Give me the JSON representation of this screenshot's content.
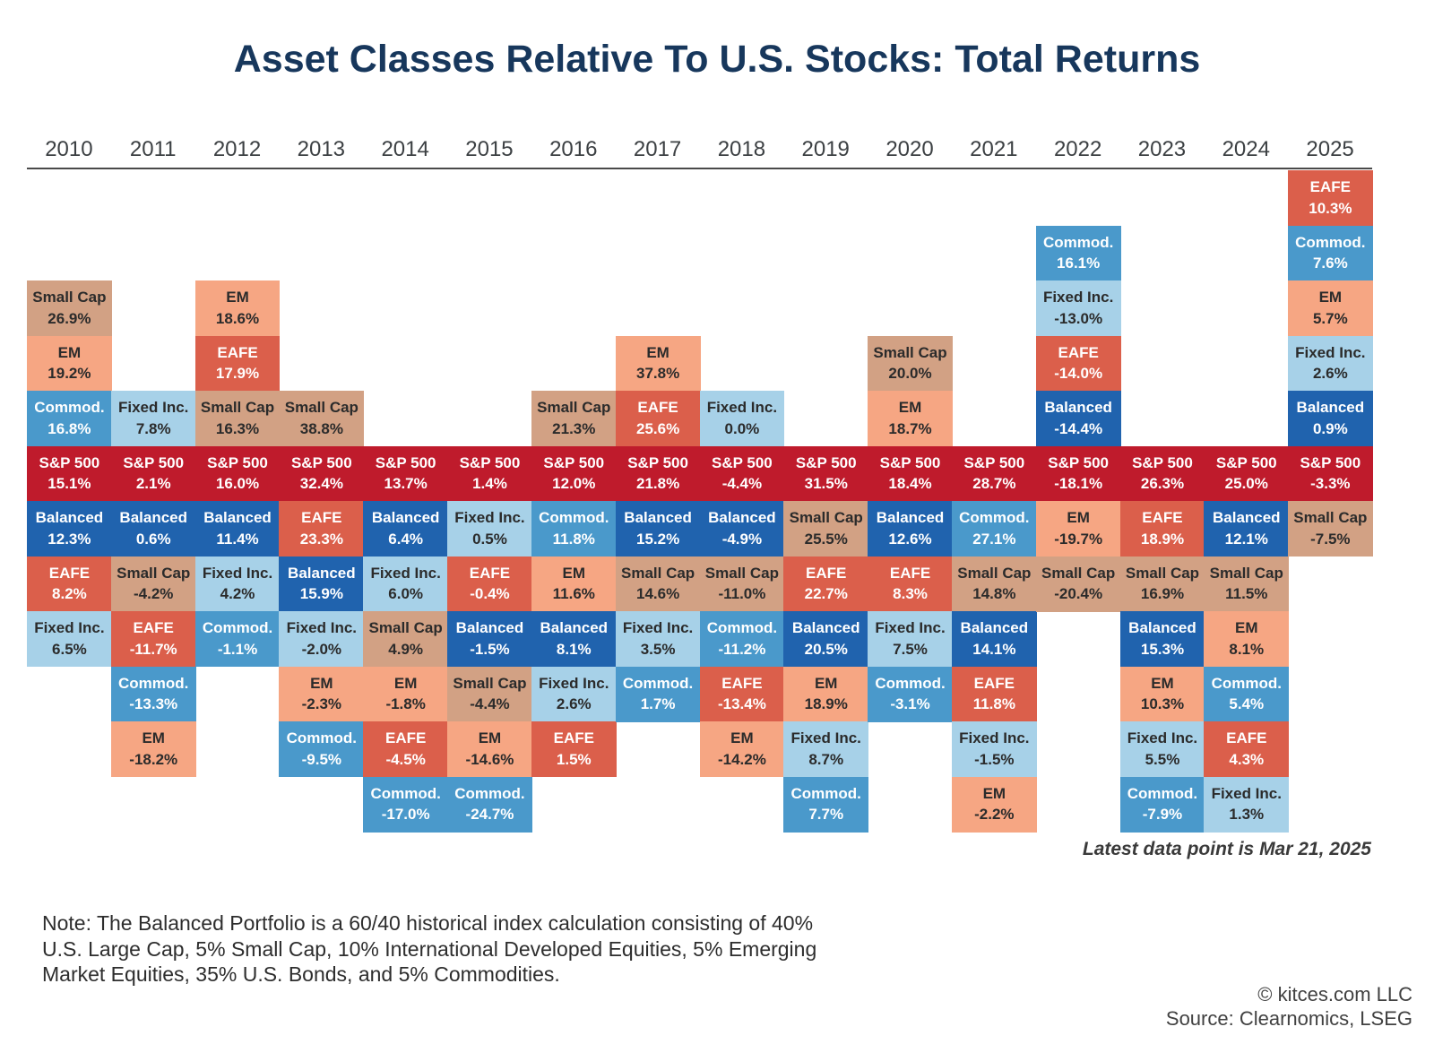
{
  "title": "Asset Classes Relative To U.S. Stocks: Total Returns",
  "latest_note": "Latest data point is Mar 21, 2025",
  "footnote": {
    "lines": [
      "Note: The Balanced Portfolio is a 60/40 historical index calculation consisting of 40%",
      "U.S. Large Cap, 5% Small Cap, 10% International Developed Equities, 5% Emerging",
      "Market Equities, 35% U.S. Bonds, and 5% Commodities."
    ]
  },
  "credits": {
    "line1": "© kitces.com LLC",
    "line2": "Source: Clearnomics, LSEG"
  },
  "chart_data": {
    "type": "table",
    "subtype": "asset-class-return-quilt",
    "title": "Asset Classes Relative To U.S. Stocks: Total Returns",
    "layout_note": "Each year is a stacked column of asset classes ordered by total return; cells above the continuous S&P 500 band outperformed U.S. stocks that year, cells below underperformed.",
    "legend_position": "none",
    "grid": "off",
    "sp500_row_slot": 5,
    "asset_colors": {
      "S&P 500": {
        "bg": "#BF1B2C",
        "text": "#FFFFFF"
      },
      "Balanced": {
        "bg": "#2063AE",
        "text": "#FFFFFF"
      },
      "EAFE": {
        "bg": "#DB5F4B",
        "text": "#FFFFFF"
      },
      "Commod.": {
        "bg": "#4A99CB",
        "text": "#FFFFFF"
      },
      "Fixed Inc.": {
        "bg": "#A7D1E8",
        "text": "#2B2B2B"
      },
      "EM": {
        "bg": "#F6A683",
        "text": "#2B2B2B"
      },
      "Small Cap": {
        "bg": "#D2A184",
        "text": "#2B2B2B"
      }
    },
    "columns": [
      {
        "year": "2010",
        "above_sp500": 3,
        "cells": [
          [
            "Small Cap",
            "26.9%"
          ],
          [
            "EM",
            "19.2%"
          ],
          [
            "Commod.",
            "16.8%"
          ],
          [
            "S&P 500",
            "15.1%"
          ],
          [
            "Balanced",
            "12.3%"
          ],
          [
            "EAFE",
            "8.2%"
          ],
          [
            "Fixed Inc.",
            "6.5%"
          ]
        ]
      },
      {
        "year": "2011",
        "above_sp500": 1,
        "cells": [
          [
            "Fixed Inc.",
            "7.8%"
          ],
          [
            "S&P 500",
            "2.1%"
          ],
          [
            "Balanced",
            "0.6%"
          ],
          [
            "Small Cap",
            "-4.2%"
          ],
          [
            "EAFE",
            "-11.7%"
          ],
          [
            "Commod.",
            "-13.3%"
          ],
          [
            "EM",
            "-18.2%"
          ]
        ]
      },
      {
        "year": "2012",
        "above_sp500": 3,
        "cells": [
          [
            "EM",
            "18.6%"
          ],
          [
            "EAFE",
            "17.9%"
          ],
          [
            "Small Cap",
            "16.3%"
          ],
          [
            "S&P 500",
            "16.0%"
          ],
          [
            "Balanced",
            "11.4%"
          ],
          [
            "Fixed Inc.",
            "4.2%"
          ],
          [
            "Commod.",
            "-1.1%"
          ]
        ]
      },
      {
        "year": "2013",
        "above_sp500": 1,
        "cells": [
          [
            "Small Cap",
            "38.8%"
          ],
          [
            "S&P 500",
            "32.4%"
          ],
          [
            "EAFE",
            "23.3%"
          ],
          [
            "Balanced",
            "15.9%"
          ],
          [
            "Fixed Inc.",
            "-2.0%"
          ],
          [
            "EM",
            "-2.3%"
          ],
          [
            "Commod.",
            "-9.5%"
          ]
        ]
      },
      {
        "year": "2014",
        "above_sp500": 0,
        "cells": [
          [
            "S&P 500",
            "13.7%"
          ],
          [
            "Balanced",
            "6.4%"
          ],
          [
            "Fixed Inc.",
            "6.0%"
          ],
          [
            "Small Cap",
            "4.9%"
          ],
          [
            "EM",
            "-1.8%"
          ],
          [
            "EAFE",
            "-4.5%"
          ],
          [
            "Commod.",
            "-17.0%"
          ]
        ]
      },
      {
        "year": "2015",
        "above_sp500": 0,
        "cells": [
          [
            "S&P 500",
            "1.4%"
          ],
          [
            "Fixed Inc.",
            "0.5%"
          ],
          [
            "EAFE",
            "-0.4%"
          ],
          [
            "Balanced",
            "-1.5%"
          ],
          [
            "Small Cap",
            "-4.4%"
          ],
          [
            "EM",
            "-14.6%"
          ],
          [
            "Commod.",
            "-24.7%"
          ]
        ]
      },
      {
        "year": "2016",
        "above_sp500": 1,
        "cells": [
          [
            "Small Cap",
            "21.3%"
          ],
          [
            "S&P 500",
            "12.0%"
          ],
          [
            "Commod.",
            "11.8%"
          ],
          [
            "EM",
            "11.6%"
          ],
          [
            "Balanced",
            "8.1%"
          ],
          [
            "Fixed Inc.",
            "2.6%"
          ],
          [
            "EAFE",
            "1.5%"
          ]
        ]
      },
      {
        "year": "2017",
        "above_sp500": 2,
        "cells": [
          [
            "EM",
            "37.8%"
          ],
          [
            "EAFE",
            "25.6%"
          ],
          [
            "S&P 500",
            "21.8%"
          ],
          [
            "Balanced",
            "15.2%"
          ],
          [
            "Small Cap",
            "14.6%"
          ],
          [
            "Fixed Inc.",
            "3.5%"
          ],
          [
            "Commod.",
            "1.7%"
          ]
        ]
      },
      {
        "year": "2018",
        "above_sp500": 1,
        "cells": [
          [
            "Fixed Inc.",
            "0.0%"
          ],
          [
            "S&P 500",
            "-4.4%"
          ],
          [
            "Balanced",
            "-4.9%"
          ],
          [
            "Small Cap",
            "-11.0%"
          ],
          [
            "Commod.",
            "-11.2%"
          ],
          [
            "EAFE",
            "-13.4%"
          ],
          [
            "EM",
            "-14.2%"
          ]
        ]
      },
      {
        "year": "2019",
        "above_sp500": 0,
        "cells": [
          [
            "S&P 500",
            "31.5%"
          ],
          [
            "Small Cap",
            "25.5%"
          ],
          [
            "EAFE",
            "22.7%"
          ],
          [
            "Balanced",
            "20.5%"
          ],
          [
            "EM",
            "18.9%"
          ],
          [
            "Fixed Inc.",
            "8.7%"
          ],
          [
            "Commod.",
            "7.7%"
          ]
        ]
      },
      {
        "year": "2020",
        "above_sp500": 2,
        "cells": [
          [
            "Small Cap",
            "20.0%"
          ],
          [
            "EM",
            "18.7%"
          ],
          [
            "S&P 500",
            "18.4%"
          ],
          [
            "Balanced",
            "12.6%"
          ],
          [
            "EAFE",
            "8.3%"
          ],
          [
            "Fixed Inc.",
            "7.5%"
          ],
          [
            "Commod.",
            "-3.1%"
          ]
        ]
      },
      {
        "year": "2021",
        "above_sp500": 0,
        "cells": [
          [
            "S&P 500",
            "28.7%"
          ],
          [
            "Commod.",
            "27.1%"
          ],
          [
            "Small Cap",
            "14.8%"
          ],
          [
            "Balanced",
            "14.1%"
          ],
          [
            "EAFE",
            "11.8%"
          ],
          [
            "Fixed Inc.",
            "-1.5%"
          ],
          [
            "EM",
            "-2.2%"
          ]
        ]
      },
      {
        "year": "2022",
        "above_sp500": 4,
        "cells": [
          [
            "Commod.",
            "16.1%"
          ],
          [
            "Fixed Inc.",
            "-13.0%"
          ],
          [
            "EAFE",
            "-14.0%"
          ],
          [
            "Balanced",
            "-14.4%"
          ],
          [
            "S&P 500",
            "-18.1%"
          ],
          [
            "EM",
            "-19.7%"
          ],
          [
            "Small Cap",
            "-20.4%"
          ]
        ]
      },
      {
        "year": "2023",
        "above_sp500": 0,
        "cells": [
          [
            "S&P 500",
            "26.3%"
          ],
          [
            "EAFE",
            "18.9%"
          ],
          [
            "Small Cap",
            "16.9%"
          ],
          [
            "Balanced",
            "15.3%"
          ],
          [
            "EM",
            "10.3%"
          ],
          [
            "Fixed Inc.",
            "5.5%"
          ],
          [
            "Commod.",
            "-7.9%"
          ]
        ]
      },
      {
        "year": "2024",
        "above_sp500": 0,
        "cells": [
          [
            "S&P 500",
            "25.0%"
          ],
          [
            "Balanced",
            "12.1%"
          ],
          [
            "Small Cap",
            "11.5%"
          ],
          [
            "EM",
            "8.1%"
          ],
          [
            "Commod.",
            "5.4%"
          ],
          [
            "EAFE",
            "4.3%"
          ],
          [
            "Fixed Inc.",
            "1.3%"
          ]
        ]
      },
      {
        "year": "2025",
        "above_sp500": 5,
        "cells": [
          [
            "EAFE",
            "10.3%"
          ],
          [
            "Commod.",
            "7.6%"
          ],
          [
            "EM",
            "5.7%"
          ],
          [
            "Fixed Inc.",
            "2.6%"
          ],
          [
            "Balanced",
            "0.9%"
          ],
          [
            "S&P 500",
            "-3.3%"
          ],
          [
            "Small Cap",
            "-7.5%"
          ]
        ]
      }
    ]
  }
}
